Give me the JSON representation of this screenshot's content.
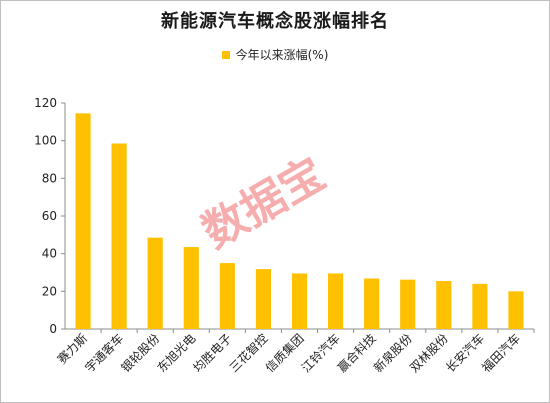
{
  "chart_data": {
    "type": "bar",
    "title": "新能源汽车概念股涨幅排名",
    "series": [
      {
        "name": "今年以来涨幅(%)",
        "values": [
          114.5,
          98.5,
          48.5,
          43.5,
          35,
          31.8,
          29.5,
          29.5,
          26.8,
          26.2,
          25.5,
          24,
          20
        ]
      }
    ],
    "categories": [
      "赛力斯",
      "宇通客车",
      "银轮股份",
      "东旭光电",
      "均胜电子",
      "三花智控",
      "信质集团",
      "江铃汽车",
      "赢合科技",
      "新泉股份",
      "双林股份",
      "长安汽车",
      "福田汽车"
    ],
    "ylim": [
      0,
      120
    ],
    "yticks": [
      0,
      20,
      40,
      60,
      80,
      100,
      120
    ],
    "grid": false,
    "legend": "top",
    "bar_color": "#FFC000"
  },
  "watermark": "数据宝"
}
